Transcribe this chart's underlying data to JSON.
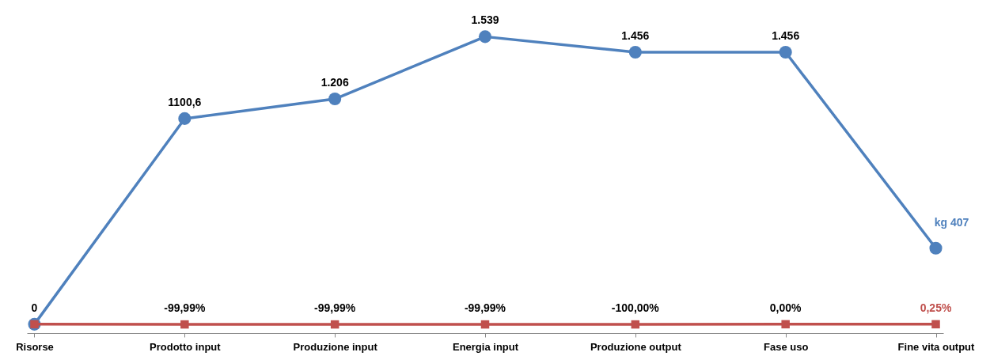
{
  "chart_data": {
    "type": "line",
    "categories": [
      "Risorse",
      "Prodotto input",
      "Produzione input",
      "Energia input",
      "Produzione output",
      "Fase uso",
      "Fine vita output"
    ],
    "series": [
      {
        "color": "#4f81bd",
        "marker": "circle",
        "values": [
          0,
          1100.6,
          1206,
          1539,
          1456,
          1456,
          407
        ],
        "value_labels": [
          "0",
          "1100,6",
          "1.206",
          "1.539",
          "1.456",
          "1.456",
          "kg 407"
        ]
      },
      {
        "color": "#c0504d",
        "marker": "square",
        "values": [
          0,
          -0.9999,
          -0.9999,
          -0.9999,
          -1.0,
          0.0,
          0.0025
        ],
        "value_labels": [
          null,
          "-99,99%",
          "-99,99%",
          "-99,99%",
          "-100,00%",
          "0,00%",
          "0,25%"
        ]
      }
    ],
    "grid": false
  }
}
